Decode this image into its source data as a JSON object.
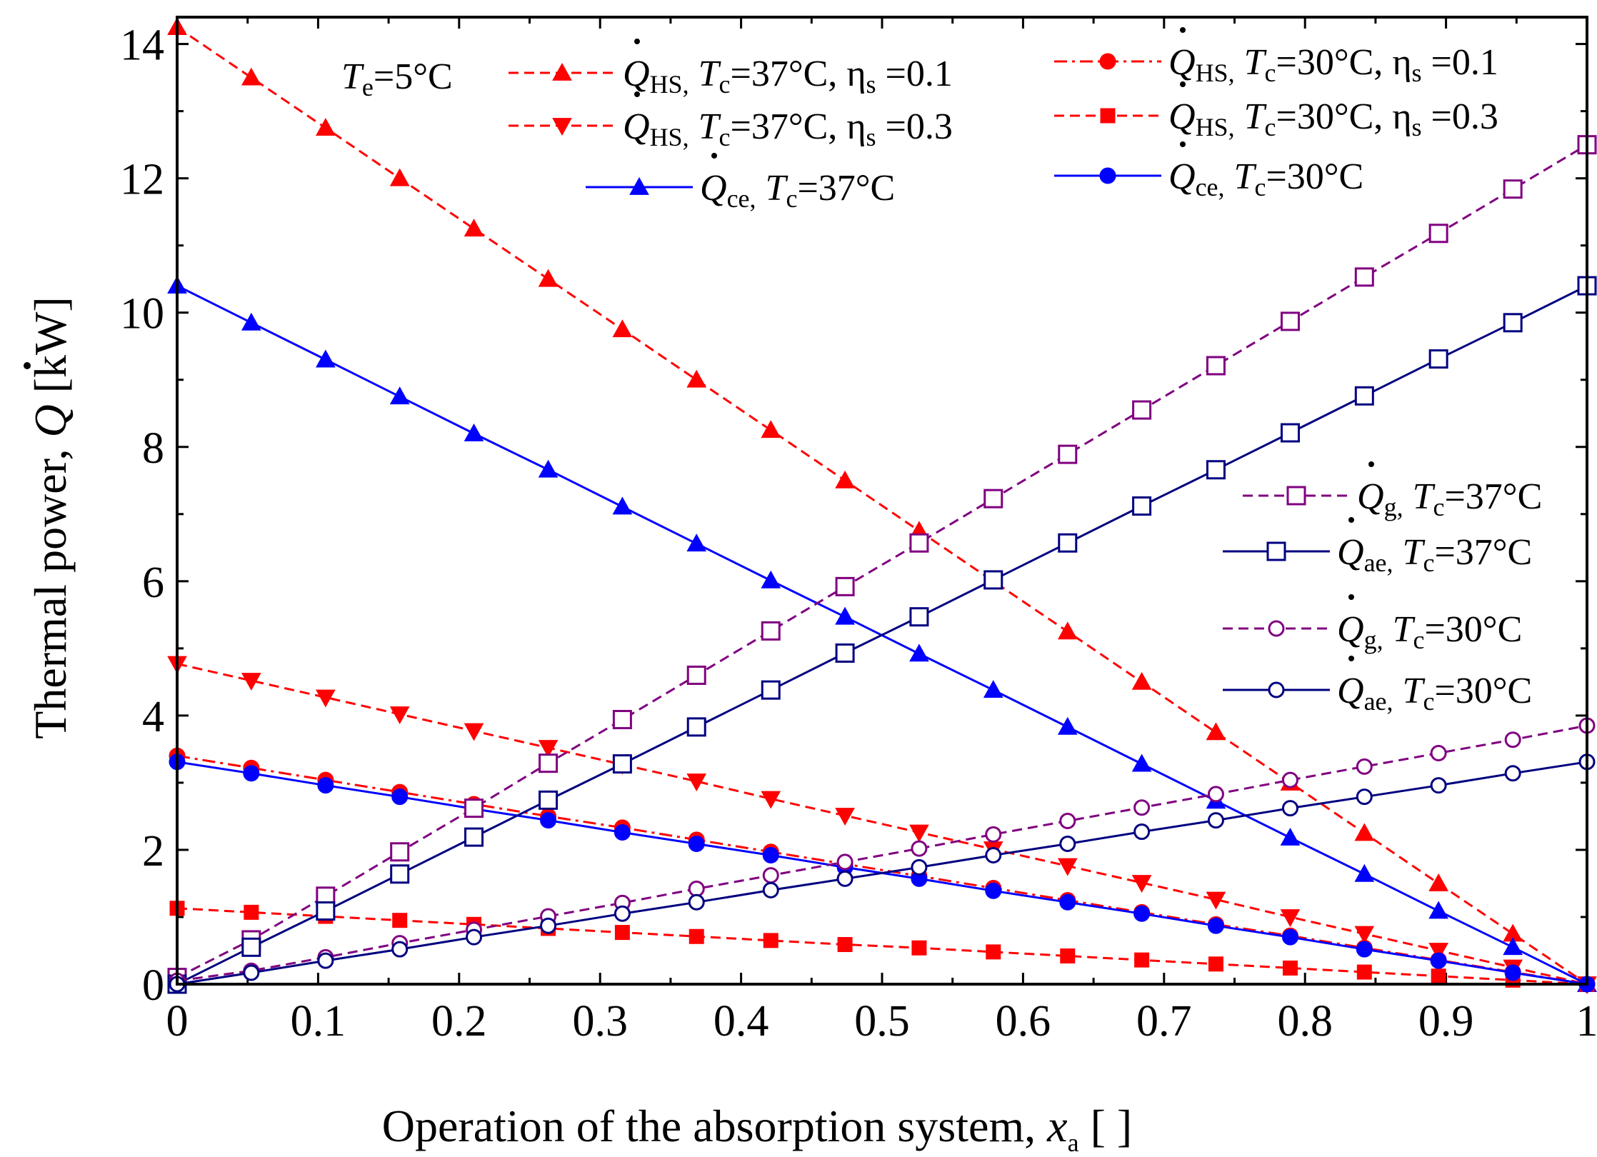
{
  "chart_data": {
    "type": "line",
    "xlabel_main": "Operation of the absorption system, ",
    "xlabel_var": "x",
    "xlabel_sub": "a",
    "xlabel_unit": " [ ]",
    "ylabel_main": "Thermal power, ",
    "ylabel_var": "Q",
    "ylabel_unit": " [kW]",
    "xlim": [
      0,
      1
    ],
    "ylim": [
      0,
      14.4
    ],
    "x_ticks": [
      0,
      0.1,
      0.2,
      0.3,
      0.4,
      0.5,
      0.6,
      0.7,
      0.8,
      0.9,
      1
    ],
    "x_tick_labels": [
      "0",
      "0.1",
      "0.2",
      "0.3",
      "0.4",
      "0.5",
      "0.6",
      "0.7",
      "0.8",
      "0.9",
      "1"
    ],
    "y_ticks": [
      0,
      2,
      4,
      6,
      8,
      10,
      12,
      14
    ],
    "y_tick_labels": [
      "0",
      "2",
      "4",
      "6",
      "8",
      "10",
      "12",
      "14"
    ],
    "annotation": {
      "var": "T",
      "sub": "e",
      "rest": "=5°C"
    },
    "x": [
      0,
      0.0526,
      0.1053,
      0.1579,
      0.2105,
      0.2632,
      0.3158,
      0.3684,
      0.4211,
      0.4737,
      0.5263,
      0.5789,
      0.6316,
      0.6842,
      0.7368,
      0.7895,
      0.8421,
      0.8947,
      0.9474,
      1.0
    ],
    "series": [
      {
        "name": "QHS Tc=37 eta0.1",
        "var": "Q",
        "sub": "HS,",
        "condition": "T",
        "condition_sub": "c",
        "condition_rest": "=37°C, ",
        "eta": "η",
        "eta_sub": "s",
        "eta_rest": " =0.1",
        "color": "#ff0000",
        "dash": "dashed",
        "marker": "triangle-up",
        "filled": true,
        "values": [
          14.25,
          13.5,
          12.75,
          12.0,
          11.25,
          10.5,
          9.75,
          9.0,
          8.25,
          7.5,
          6.75,
          6.0,
          5.25,
          4.5,
          3.75,
          3.0,
          2.25,
          1.5,
          0.75,
          0
        ]
      },
      {
        "name": "QHS Tc=37 eta0.3",
        "var": "Q",
        "sub": "HS,",
        "condition": "T",
        "condition_sub": "c",
        "condition_rest": "=37°C, ",
        "eta": "η",
        "eta_sub": "s",
        "eta_rest": " =0.3",
        "color": "#ff0000",
        "dash": "dashed",
        "marker": "triangle-down",
        "filled": true,
        "values": [
          4.77,
          4.52,
          4.27,
          4.02,
          3.77,
          3.52,
          3.27,
          3.02,
          2.76,
          2.51,
          2.26,
          2.01,
          1.76,
          1.51,
          1.26,
          1.0,
          0.75,
          0.5,
          0.25,
          0
        ]
      },
      {
        "name": "Qce Tc=37",
        "var": "Q",
        "sub": "ce,",
        "condition": "T",
        "condition_sub": "c",
        "condition_rest": "=37°C",
        "color": "#0000ff",
        "dash": "solid",
        "marker": "triangle-up",
        "filled": true,
        "values": [
          10.4,
          9.85,
          9.3,
          8.75,
          8.2,
          7.66,
          7.11,
          6.56,
          6.01,
          5.47,
          4.92,
          4.38,
          3.83,
          3.28,
          2.73,
          2.18,
          1.64,
          1.09,
          0.55,
          0
        ]
      },
      {
        "name": "QHS Tc=30 eta0.1",
        "var": "Q",
        "sub": "HS,",
        "condition": "T",
        "condition_sub": "c",
        "condition_rest": "=30°C, ",
        "eta": "η",
        "eta_sub": "s",
        "eta_rest": " =0.1",
        "color": "#ff0000",
        "dash": "dashdot",
        "marker": "circle",
        "filled": true,
        "values": [
          3.4,
          3.22,
          3.04,
          2.86,
          2.68,
          2.5,
          2.33,
          2.15,
          1.97,
          1.79,
          1.61,
          1.43,
          1.25,
          1.07,
          0.89,
          0.72,
          0.54,
          0.36,
          0.18,
          0
        ]
      },
      {
        "name": "QHS Tc=30 eta0.3",
        "var": "Q",
        "sub": "HS,",
        "condition": "T",
        "condition_sub": "c",
        "condition_rest": "=30°C, ",
        "eta": "η",
        "eta_sub": "s",
        "eta_rest": " =0.3",
        "color": "#ff0000",
        "dash": "dashed",
        "marker": "square",
        "filled": true,
        "values": [
          1.13,
          1.07,
          1.01,
          0.95,
          0.89,
          0.83,
          0.77,
          0.71,
          0.65,
          0.59,
          0.54,
          0.48,
          0.42,
          0.36,
          0.3,
          0.24,
          0.18,
          0.12,
          0.06,
          0
        ]
      },
      {
        "name": "Qce Tc=30",
        "var": "Q",
        "sub": "ce,",
        "condition": "T",
        "condition_sub": "c",
        "condition_rest": "=30°C",
        "color": "#0000ff",
        "dash": "solid",
        "marker": "circle",
        "filled": true,
        "values": [
          3.31,
          3.14,
          2.96,
          2.79,
          2.61,
          2.44,
          2.26,
          2.09,
          1.92,
          1.74,
          1.57,
          1.39,
          1.22,
          1.05,
          0.87,
          0.7,
          0.52,
          0.35,
          0.17,
          0
        ]
      },
      {
        "name": "Qg Tc=37",
        "var": "Q",
        "sub": "g,",
        "condition": "T",
        "condition_sub": "c",
        "condition_rest": "=37°C",
        "color": "#800080",
        "dash": "dashed",
        "marker": "square",
        "filled": false,
        "values": [
          0.1,
          0.66,
          1.31,
          1.97,
          2.62,
          3.29,
          3.94,
          4.6,
          5.26,
          5.92,
          6.57,
          7.23,
          7.89,
          8.55,
          9.21,
          9.87,
          10.53,
          11.18,
          11.84,
          12.5
        ]
      },
      {
        "name": "Qae Tc=37",
        "var": "Q",
        "sub": "ae,",
        "condition": "T",
        "condition_sub": "c",
        "condition_rest": "=37°C",
        "color": "#000080",
        "dash": "solid",
        "marker": "square",
        "filled": false,
        "values": [
          0,
          0.55,
          1.09,
          1.64,
          2.19,
          2.74,
          3.28,
          3.83,
          4.38,
          4.93,
          5.47,
          6.02,
          6.57,
          7.12,
          7.66,
          8.21,
          8.76,
          9.31,
          9.85,
          10.4
        ]
      },
      {
        "name": "Qg Tc=30",
        "var": "Q",
        "sub": "g,",
        "condition": "T",
        "condition_sub": "c",
        "condition_rest": "=30°C",
        "color": "#800080",
        "dash": "dashed",
        "marker": "circle",
        "filled": false,
        "values": [
          0.05,
          0.2,
          0.4,
          0.61,
          0.81,
          1.01,
          1.21,
          1.42,
          1.62,
          1.82,
          2.02,
          2.23,
          2.43,
          2.63,
          2.83,
          3.04,
          3.24,
          3.44,
          3.64,
          3.85
        ]
      },
      {
        "name": "Qae Tc=30",
        "var": "Q",
        "sub": "ae,",
        "condition": "T",
        "condition_sub": "c",
        "condition_rest": "=30°C",
        "color": "#000080",
        "dash": "solid",
        "marker": "circle",
        "filled": false,
        "values": [
          0,
          0.17,
          0.35,
          0.52,
          0.7,
          0.87,
          1.05,
          1.22,
          1.4,
          1.57,
          1.74,
          1.92,
          2.09,
          2.27,
          2.44,
          2.62,
          2.79,
          2.96,
          3.14,
          3.31
        ]
      }
    ]
  }
}
